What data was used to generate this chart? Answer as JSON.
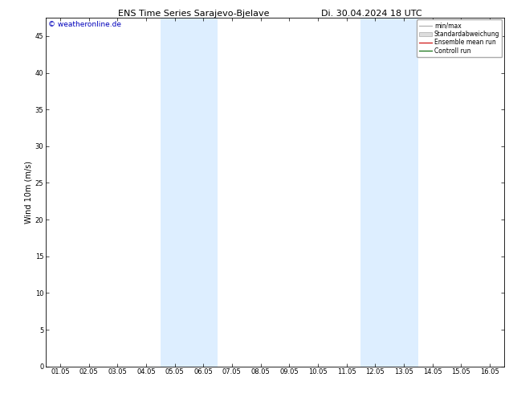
{
  "title_left": "ENS Time Series Sarajevo-Bjelave",
  "title_right": "Di. 30.04.2024 18 UTC",
  "ylabel": "Wind 10m (m/s)",
  "watermark": "© weatheronline.de",
  "ylim": [
    0,
    47.5
  ],
  "yticks": [
    0,
    5,
    10,
    15,
    20,
    25,
    30,
    35,
    40,
    45
  ],
  "xtick_labels": [
    "01.05",
    "02.05",
    "03.05",
    "04.05",
    "05.05",
    "06.05",
    "07.05",
    "08.05",
    "09.05",
    "10.05",
    "11.05",
    "12.05",
    "13.05",
    "14.05",
    "15.05",
    "16.05"
  ],
  "xtick_positions": [
    0,
    1,
    2,
    3,
    4,
    5,
    6,
    7,
    8,
    9,
    10,
    11,
    12,
    13,
    14,
    15
  ],
  "xlim": [
    -0.5,
    15.5
  ],
  "shaded_bands": [
    {
      "xmin": 3.5,
      "xmax": 5.5
    },
    {
      "xmin": 10.5,
      "xmax": 12.5
    }
  ],
  "shade_color": "#ddeeff",
  "background_color": "#ffffff",
  "legend_labels": [
    "min/max",
    "Standardabweichung",
    "Ensemble mean run",
    "Controll run"
  ],
  "title_fontsize": 8,
  "axis_fontsize": 7,
  "tick_fontsize": 6,
  "watermark_color": "#0000bb",
  "watermark_fontsize": 6.5
}
